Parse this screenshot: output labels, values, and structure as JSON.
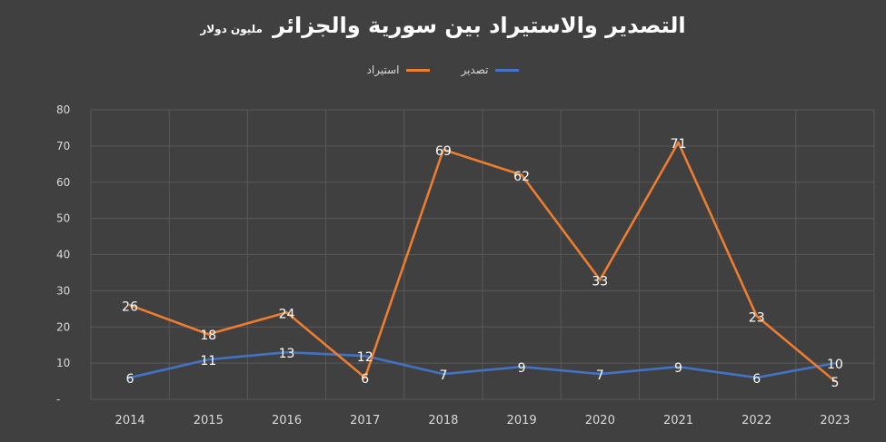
{
  "chart_data": {
    "type": "line",
    "title": "التصدير والاستيراد بين سورية والجزائر",
    "unit_label": "مليون دولار",
    "categories": [
      "2014",
      "2015",
      "2016",
      "2017",
      "2018",
      "2019",
      "2020",
      "2021",
      "2022",
      "2023"
    ],
    "series": [
      {
        "name": "تصدير",
        "color": "#4472C4",
        "values": [
          6,
          11,
          13,
          12,
          7,
          9,
          7,
          9,
          6,
          10
        ]
      },
      {
        "name": "استيراد",
        "color": "#ED7D31",
        "values": [
          26,
          18,
          24,
          6,
          69,
          62,
          33,
          71,
          23,
          5
        ]
      }
    ],
    "y_ticks": [
      "-",
      "10",
      "20",
      "30",
      "40",
      "50",
      "60",
      "70",
      "80"
    ],
    "ylim": [
      0,
      80
    ],
    "grid": true,
    "legend_position": "top-center",
    "data_labels": true
  },
  "colors": {
    "background": "#404040",
    "grid": "#595959",
    "text": "#ffffff",
    "axis_text": "#d9d9d9"
  }
}
